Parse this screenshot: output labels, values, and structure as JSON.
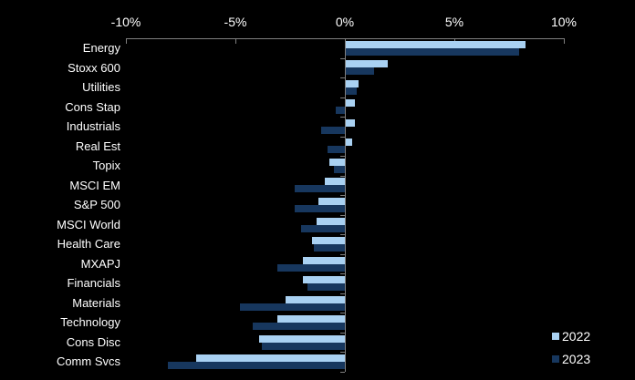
{
  "chart_data": {
    "type": "bar",
    "orientation": "horizontal",
    "title": "",
    "xlabel": "",
    "ylabel": "",
    "categories": [
      "Energy",
      "Stoxx 600",
      "Utilities",
      "Cons Stap",
      "Industrials",
      "Real Est",
      "Topix",
      "MSCI EM",
      "S&P 500",
      "MSCI World",
      "Health Care",
      "MXAPJ",
      "Financials",
      "Materials",
      "Technology",
      "Cons Disc",
      "Comm Svcs"
    ],
    "series": [
      {
        "name": "2022",
        "color": "#a9d1f2",
        "values": [
          8.2,
          1.9,
          0.6,
          0.4,
          0.4,
          0.3,
          -0.7,
          -0.9,
          -1.2,
          -1.3,
          -1.5,
          -1.9,
          -1.9,
          -2.7,
          -3.1,
          -3.9,
          -6.8
        ]
      },
      {
        "name": "2023",
        "color": "#17375e",
        "values": [
          7.9,
          1.3,
          0.5,
          -0.4,
          -1.1,
          -0.8,
          -0.5,
          -2.3,
          -2.3,
          -2.0,
          -1.4,
          -3.1,
          -1.7,
          -4.8,
          -4.2,
          -3.8,
          -8.1
        ]
      }
    ],
    "x_axis": {
      "position": "top",
      "range": [
        -10,
        10
      ],
      "tick_values": [
        -10,
        -5,
        0,
        5,
        10
      ],
      "tick_labels": [
        "-10%",
        "-5%",
        "0%",
        "5%",
        "10%"
      ]
    },
    "legend": {
      "position": "bottom-right",
      "entries": [
        "2022",
        "2023"
      ]
    },
    "background_color": "#000000",
    "text_color": "#ffffff",
    "axis_color": "#7f7f7f",
    "grid": false
  }
}
